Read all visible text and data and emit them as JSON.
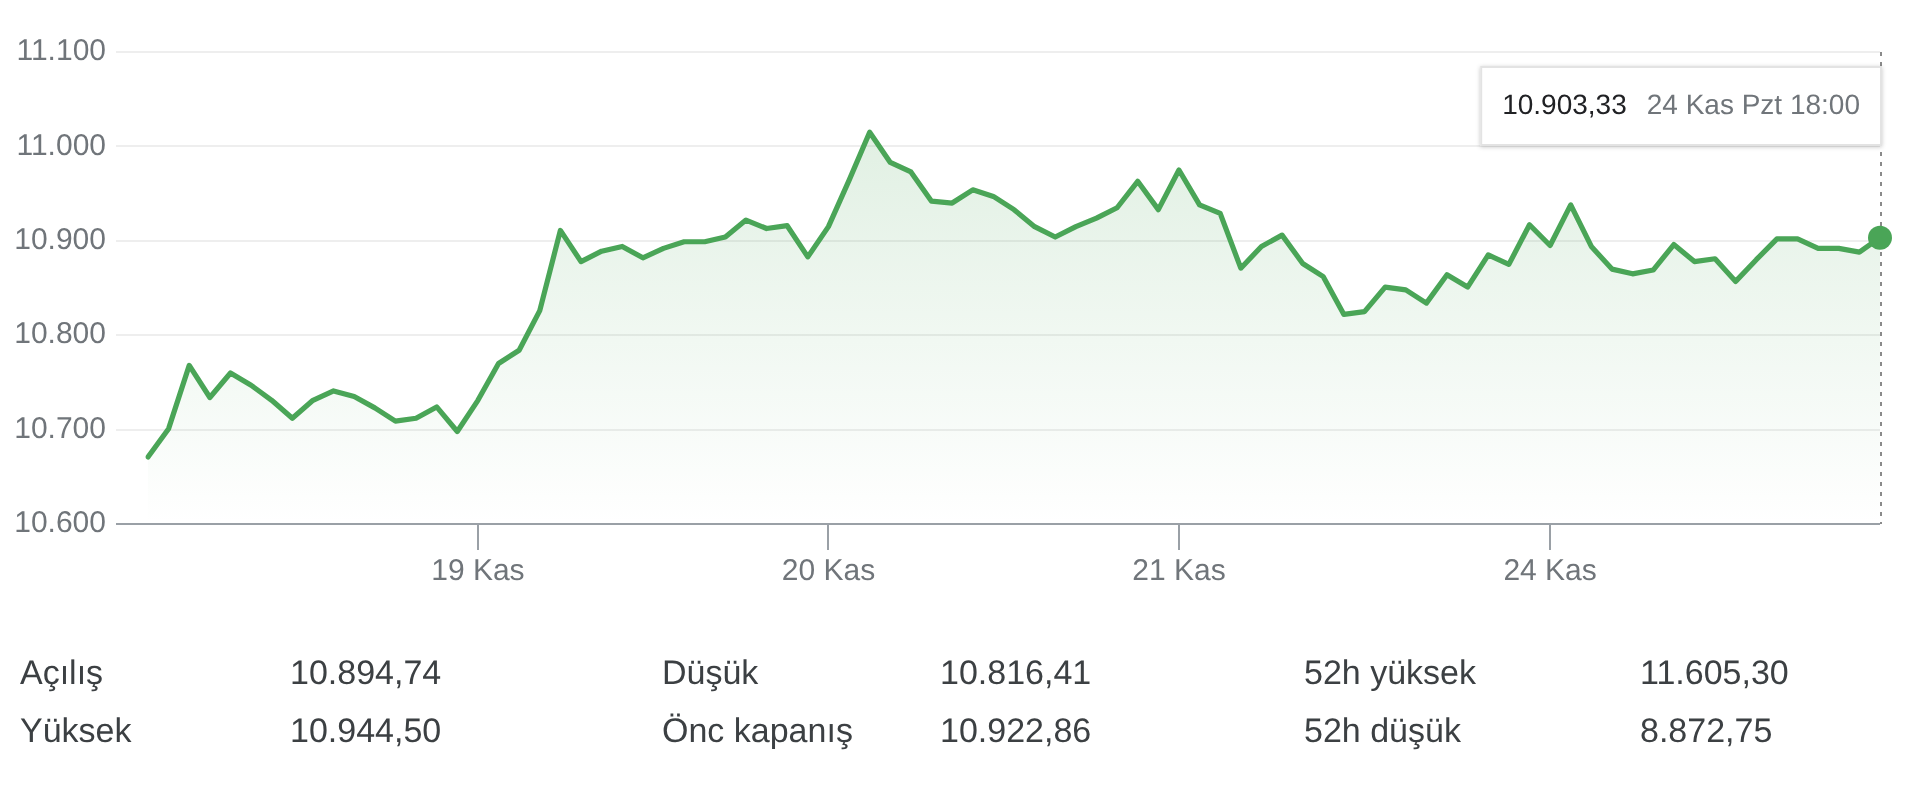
{
  "chart_data": {
    "type": "area",
    "color": "#4aa557",
    "categories": [
      null,
      null,
      null,
      null,
      null,
      null,
      null,
      null,
      null,
      null,
      null,
      null,
      null,
      null,
      null,
      null,
      "19 Kas",
      null,
      null,
      null,
      null,
      null,
      null,
      null,
      null,
      null,
      null,
      null,
      null,
      null,
      null,
      null,
      null,
      "20 Kas",
      null,
      null,
      null,
      null,
      null,
      null,
      null,
      null,
      null,
      null,
      null,
      null,
      null,
      null,
      null,
      null,
      "21 Kas",
      null,
      null,
      null,
      null,
      null,
      null,
      null,
      null,
      null,
      null,
      null,
      null,
      null,
      null,
      null,
      null,
      null,
      "24 Kas",
      null,
      null,
      null,
      null,
      null,
      null,
      null,
      null,
      null,
      null,
      null,
      null,
      null,
      null,
      null,
      null
    ],
    "values": [
      10671,
      10701,
      10768,
      10734,
      10760,
      10747,
      10731,
      10712,
      10731,
      10741,
      10735,
      10723,
      10709,
      10712,
      10724,
      10698,
      10731,
      10770,
      10784,
      10826,
      10911,
      10878,
      10889,
      10894,
      10882,
      10892,
      10899,
      10899,
      10904,
      10922,
      10913,
      10916,
      10883,
      10915,
      10964,
      11015,
      10983,
      10973,
      10942,
      10940,
      10954,
      10947,
      10933,
      10915,
      10904,
      10915,
      10924,
      10935,
      10963,
      10933,
      10975,
      10938,
      10929,
      10871,
      10894,
      10906,
      10876,
      10862,
      10822,
      10825,
      10851,
      10848,
      10834,
      10864,
      10851,
      10885,
      10875,
      10917,
      10895,
      10938,
      10894,
      10870,
      10865,
      10869,
      10896,
      10878,
      10881,
      10857,
      10880,
      10902,
      10902,
      10892,
      10892,
      10888,
      10903.33
    ],
    "ylim": [
      10600,
      11100
    ],
    "yticks": [
      {
        "value": 10600,
        "label": "10.600"
      },
      {
        "value": 10700,
        "label": "10.700"
      },
      {
        "value": 10800,
        "label": "10.800"
      },
      {
        "value": 10900,
        "label": "10.900"
      },
      {
        "value": 11000,
        "label": "11.000"
      },
      {
        "value": 11100,
        "label": "11.100"
      }
    ],
    "grid": "y",
    "annotations": [
      "10.903,33",
      "24 Kas Pzt 18:00",
      "Açılış",
      "10.894,74",
      "Düşük",
      "10.816,41",
      "52h yüksek",
      "11.605,30",
      "Yüksek",
      "10.944,50",
      "Önc kapanış",
      "10.922,86",
      "52h düşük",
      "8.872,75"
    ]
  }
}
